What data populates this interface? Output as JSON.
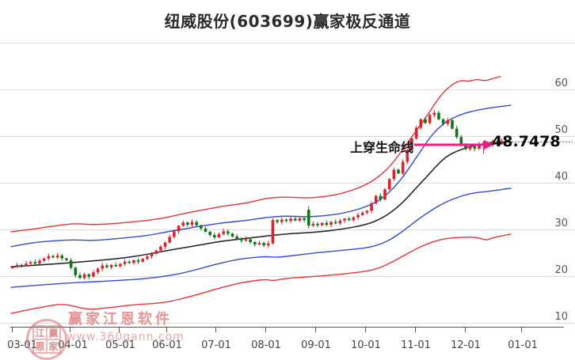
{
  "title": "纽威股份(603699)赢家极反通道",
  "annotation": {
    "text": "上穿生命线",
    "price_label": "48.7478",
    "price_value": 48.7478,
    "arrow_color": "#e0218a",
    "dotted_line_color": "#0b8f0b"
  },
  "watermark": {
    "seal_chars": [
      "江",
      "赢",
      "恩",
      "家"
    ],
    "brand": "赢家江恩软件",
    "url": "www.360gann.com"
  },
  "colors": {
    "up_candle": "#d9232e",
    "down_candle": "#12751a",
    "outer_band": "#e43535",
    "inner_band": "#2f4dd0",
    "life_line": "#2b2b2b",
    "grid": "#dcdcdc",
    "axis": "#555555",
    "tick_label": "#444444"
  },
  "chart_data": {
    "type": "candlestick",
    "title": "纽威股份(603699)赢家极反通道",
    "stock_name": "纽威股份",
    "stock_code": "603699",
    "indicator": "赢家极反通道",
    "y_axis": {
      "ticks": [
        10,
        20,
        30,
        40,
        50,
        60
      ],
      "min": 9,
      "max": 70,
      "side": "right"
    },
    "x_axis": {
      "labels": [
        "03-01",
        "04-01",
        "05-01",
        "06-01",
        "07-01",
        "08-01",
        "09-01",
        "10-01",
        "11-01",
        "12-01",
        "01-01"
      ],
      "label_positions": [
        28,
        92,
        152,
        211,
        273,
        336,
        399,
        462,
        525,
        588,
        660
      ],
      "tick_positions": [
        15,
        88,
        150,
        210,
        272,
        335,
        398,
        461,
        524,
        587,
        658
      ]
    },
    "marked_price": 48.7478,
    "first_open": 21.7,
    "closes": [
      22.0,
      22.4,
      22.2,
      22.7,
      23.0,
      22.7,
      23.3,
      23.8,
      24.3,
      24.0,
      24.4,
      23.8,
      23.4,
      21.8,
      20.2,
      19.6,
      20.4,
      19.9,
      20.8,
      21.6,
      22.3,
      21.9,
      22.4,
      22.1,
      22.6,
      23.1,
      22.8,
      23.4,
      23.1,
      23.7,
      24.2,
      24.8,
      25.5,
      26.3,
      27.2,
      28.4,
      29.6,
      30.8,
      31.5,
      31.0,
      31.6,
      30.9,
      30.2,
      29.5,
      28.8,
      28.3,
      29.0,
      29.6,
      29.1,
      28.5,
      28.0,
      27.6,
      27.9,
      27.3,
      26.8,
      27.1,
      26.6,
      27.0,
      32.0,
      31.6,
      32.1,
      31.8,
      32.3,
      31.9,
      32.4,
      32.0,
      30.8,
      31.2,
      30.9,
      31.4,
      31.0,
      31.6,
      31.3,
      31.9,
      32.3,
      32.0,
      32.6,
      33.1,
      33.6,
      34.0,
      35.6,
      37.2,
      36.4,
      38.6,
      40.8,
      42.8,
      42.0,
      44.5,
      47.0,
      49.5,
      51.8,
      53.6,
      52.8,
      54.5,
      55.0,
      53.6,
      52.6,
      53.4,
      51.6,
      49.8,
      48.3,
      47.2,
      47.8,
      47.3,
      48.2,
      48.6,
      48.0,
      48.8,
      48.3,
      49.0,
      48.6,
      48.75
    ],
    "candle_overrides": {
      "66": {
        "o": 34.2,
        "h": 35.0,
        "l": 30.2,
        "c": 30.8
      },
      "105": {
        "l": 46.2
      }
    },
    "lines": [
      {
        "name": "upper-outer-band",
        "color": "#e43535",
        "width": 1.4,
        "points": [
          [
            14,
            29.5
          ],
          [
            40,
            30.0
          ],
          [
            70,
            30.8
          ],
          [
            95,
            31.3
          ],
          [
            115,
            31.0
          ],
          [
            140,
            31.2
          ],
          [
            165,
            31.6
          ],
          [
            190,
            32.0
          ],
          [
            211,
            32.6
          ],
          [
            240,
            33.7
          ],
          [
            260,
            34.3
          ],
          [
            285,
            35.1
          ],
          [
            310,
            35.6
          ],
          [
            336,
            36.7
          ],
          [
            360,
            37.0
          ],
          [
            385,
            36.7
          ],
          [
            410,
            37.0
          ],
          [
            435,
            37.8
          ],
          [
            462,
            39.5
          ],
          [
            480,
            41.5
          ],
          [
            495,
            44.0
          ],
          [
            510,
            47.5
          ],
          [
            525,
            51.0
          ],
          [
            540,
            54.5
          ],
          [
            555,
            58.5
          ],
          [
            570,
            61.0
          ],
          [
            582,
            62.0
          ],
          [
            592,
            61.7
          ],
          [
            602,
            62.2
          ],
          [
            612,
            61.8
          ],
          [
            622,
            62.3
          ],
          [
            632,
            62.8
          ]
        ]
      },
      {
        "name": "upper-inner-band",
        "color": "#2f4dd0",
        "width": 1.4,
        "points": [
          [
            14,
            26.3
          ],
          [
            40,
            27.2
          ],
          [
            70,
            27.6
          ],
          [
            95,
            27.8
          ],
          [
            115,
            27.6
          ],
          [
            140,
            27.9
          ],
          [
            165,
            28.3
          ],
          [
            190,
            28.8
          ],
          [
            211,
            29.5
          ],
          [
            240,
            30.3
          ],
          [
            260,
            30.9
          ],
          [
            285,
            31.5
          ],
          [
            310,
            31.9
          ],
          [
            336,
            32.6
          ],
          [
            360,
            32.9
          ],
          [
            385,
            32.7
          ],
          [
            410,
            32.9
          ],
          [
            435,
            33.5
          ],
          [
            462,
            34.8
          ],
          [
            480,
            36.3
          ],
          [
            495,
            38.5
          ],
          [
            510,
            41.5
          ],
          [
            522,
            44.5
          ],
          [
            532,
            47.0
          ],
          [
            542,
            49.5
          ],
          [
            552,
            51.5
          ],
          [
            565,
            53.3
          ],
          [
            580,
            54.5
          ],
          [
            595,
            55.3
          ],
          [
            610,
            55.8
          ],
          [
            625,
            56.2
          ],
          [
            645,
            56.6
          ]
        ]
      },
      {
        "name": "life-line",
        "color": "#2b2b2b",
        "width": 1.6,
        "points": [
          [
            14,
            22.0
          ],
          [
            50,
            22.4
          ],
          [
            92,
            22.9
          ],
          [
            120,
            23.3
          ],
          [
            152,
            23.8
          ],
          [
            180,
            24.5
          ],
          [
            211,
            25.5
          ],
          [
            240,
            26.3
          ],
          [
            273,
            27.3
          ],
          [
            300,
            27.9
          ],
          [
            336,
            28.6
          ],
          [
            365,
            29.1
          ],
          [
            399,
            29.4
          ],
          [
            430,
            30.0
          ],
          [
            462,
            31.0
          ],
          [
            480,
            32.2
          ],
          [
            495,
            33.8
          ],
          [
            510,
            36.0
          ],
          [
            525,
            38.8
          ],
          [
            540,
            41.5
          ],
          [
            553,
            44.0
          ],
          [
            565,
            45.8
          ],
          [
            577,
            46.8
          ],
          [
            590,
            47.6
          ],
          [
            605,
            48.2
          ],
          [
            620,
            48.5
          ],
          [
            635,
            48.7
          ],
          [
            645,
            48.75
          ]
        ]
      },
      {
        "name": "lower-inner-band",
        "color": "#2f4dd0",
        "width": 1.4,
        "points": [
          [
            14,
            17.6
          ],
          [
            50,
            18.1
          ],
          [
            92,
            18.6
          ],
          [
            120,
            18.8
          ],
          [
            152,
            19.1
          ],
          [
            180,
            19.4
          ],
          [
            211,
            20.0
          ],
          [
            240,
            21.0
          ],
          [
            273,
            22.6
          ],
          [
            300,
            23.6
          ],
          [
            320,
            24.0
          ],
          [
            336,
            24.2
          ],
          [
            350,
            24.0
          ],
          [
            365,
            24.3
          ],
          [
            399,
            25.0
          ],
          [
            430,
            25.5
          ],
          [
            462,
            26.0
          ],
          [
            480,
            26.8
          ],
          [
            495,
            28.0
          ],
          [
            510,
            29.8
          ],
          [
            525,
            31.8
          ],
          [
            540,
            33.6
          ],
          [
            555,
            35.2
          ],
          [
            570,
            36.4
          ],
          [
            585,
            37.3
          ],
          [
            600,
            37.9
          ],
          [
            615,
            38.1
          ],
          [
            630,
            38.5
          ],
          [
            645,
            38.8
          ]
        ]
      },
      {
        "name": "lower-outer-band",
        "color": "#e43535",
        "width": 1.4,
        "points": [
          [
            14,
            12.0
          ],
          [
            35,
            12.8
          ],
          [
            55,
            13.4
          ],
          [
            77,
            14.1
          ],
          [
            95,
            13.5
          ],
          [
            113,
            12.8
          ],
          [
            135,
            13.2
          ],
          [
            150,
            13.5
          ],
          [
            170,
            13.9
          ],
          [
            190,
            14.1
          ],
          [
            211,
            14.4
          ],
          [
            240,
            15.6
          ],
          [
            260,
            16.6
          ],
          [
            285,
            17.8
          ],
          [
            300,
            18.4
          ],
          [
            320,
            19.0
          ],
          [
            336,
            19.3
          ],
          [
            345,
            19.0
          ],
          [
            360,
            19.5
          ],
          [
            385,
            19.8
          ],
          [
            410,
            20.1
          ],
          [
            435,
            20.5
          ],
          [
            462,
            21.0
          ],
          [
            480,
            21.8
          ],
          [
            495,
            23.0
          ],
          [
            510,
            24.4
          ],
          [
            525,
            25.8
          ],
          [
            540,
            27.0
          ],
          [
            555,
            27.8
          ],
          [
            570,
            28.2
          ],
          [
            585,
            28.3
          ],
          [
            598,
            28.4
          ],
          [
            608,
            28.0
          ],
          [
            615,
            27.7
          ],
          [
            622,
            28.2
          ],
          [
            635,
            28.7
          ],
          [
            645,
            29.0
          ]
        ]
      }
    ]
  }
}
